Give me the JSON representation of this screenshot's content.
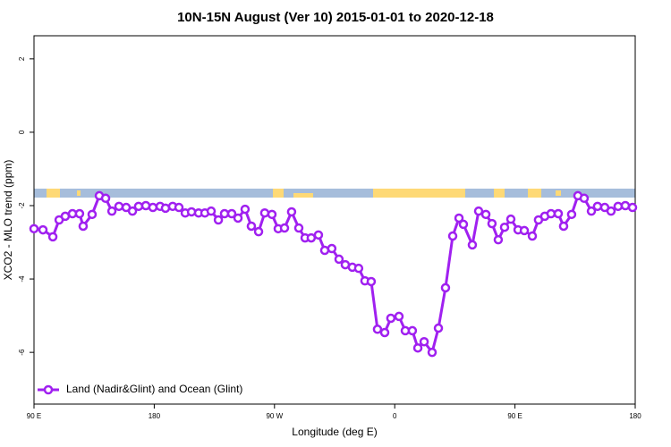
{
  "chart_data": {
    "type": "line",
    "title": "10N-15N August (Ver 10)   2015-01-01 to 2020-12-18",
    "x_label": "Longitude (deg E)",
    "y_label": "XCO2 - MLO trend (ppm)",
    "xlim": [
      90,
      540
    ],
    "ylim": [
      -7.41,
      2.63
    ],
    "xticks": [
      {
        "value": 90,
        "label": "90 E"
      },
      180,
      {
        "value": 270,
        "label": "90 W"
      },
      {
        "value": 360,
        "label": "0"
      },
      {
        "value": 450,
        "label": "90 E"
      },
      {
        "value": 540,
        "label": "180"
      }
    ],
    "yticks": [
      2,
      0,
      -2,
      -4,
      -6
    ],
    "legend_position": "bottomleft",
    "series": [
      {
        "name": "Land (Nadir&Glint) and Ocean (Glint)",
        "color": "#a020f0",
        "x": [
          90,
          96.7,
          104.1,
          108.8,
          113.4,
          118.8,
          124.1,
          126.8,
          133.5,
          138.9,
          143.6,
          148.3,
          153.6,
          159,
          163.7,
          168.3,
          173.7,
          179,
          184.4,
          188.4,
          193.8,
          198.5,
          203.2,
          207.9,
          213.2,
          217.9,
          222.6,
          228,
          232.6,
          238,
          242.7,
          248,
          252.7,
          258.1,
          262.7,
          268.1,
          272.8,
          277.5,
          282.8,
          288.2,
          292.9,
          297.5,
          302.9,
          307.6,
          312.9,
          318.3,
          323,
          328.3,
          333,
          337.7,
          342.4,
          347.1,
          352.5,
          357.1,
          363.2,
          367.9,
          373.2,
          377.3,
          382,
          388,
          392.7,
          398,
          403.4,
          408.1,
          411.4,
          418.1,
          422.8,
          428.2,
          432.8,
          437.5,
          442.2,
          446.9,
          452.3,
          457,
          463,
          467.6,
          472.3,
          477,
          482.4,
          486.4,
          492.4,
          497.1,
          501.8,
          507.2,
          511.8,
          517.2,
          521.9,
          527.2,
          532.6,
          538
        ],
        "values": [
          -2.63,
          -2.66,
          -2.85,
          -2.39,
          -2.29,
          -2.22,
          -2.22,
          -2.56,
          -2.24,
          -1.73,
          -1.8,
          -2.15,
          -2.02,
          -2.05,
          -2.15,
          -2.02,
          -2.0,
          -2.05,
          -2.02,
          -2.07,
          -2.02,
          -2.05,
          -2.2,
          -2.17,
          -2.2,
          -2.2,
          -2.15,
          -2.39,
          -2.22,
          -2.22,
          -2.34,
          -2.1,
          -2.56,
          -2.71,
          -2.2,
          -2.24,
          -2.63,
          -2.61,
          -2.17,
          -2.61,
          -2.88,
          -2.88,
          -2.8,
          -3.22,
          -3.17,
          -3.46,
          -3.61,
          -3.68,
          -3.71,
          -4.05,
          -4.07,
          -5.37,
          -5.46,
          -5.07,
          -5.02,
          -5.41,
          -5.41,
          -5.88,
          -5.71,
          -6.0,
          -5.34,
          -4.24,
          -2.83,
          -2.34,
          -2.51,
          -3.07,
          -2.15,
          -2.24,
          -2.49,
          -2.93,
          -2.59,
          -2.37,
          -2.66,
          -2.68,
          -2.83,
          -2.39,
          -2.29,
          -2.22,
          -2.22,
          -2.56,
          -2.24,
          -1.73,
          -1.8,
          -2.15,
          -2.02,
          -2.05,
          -2.15,
          -2.02,
          -2.0,
          -2.05
        ]
      }
    ]
  }
}
